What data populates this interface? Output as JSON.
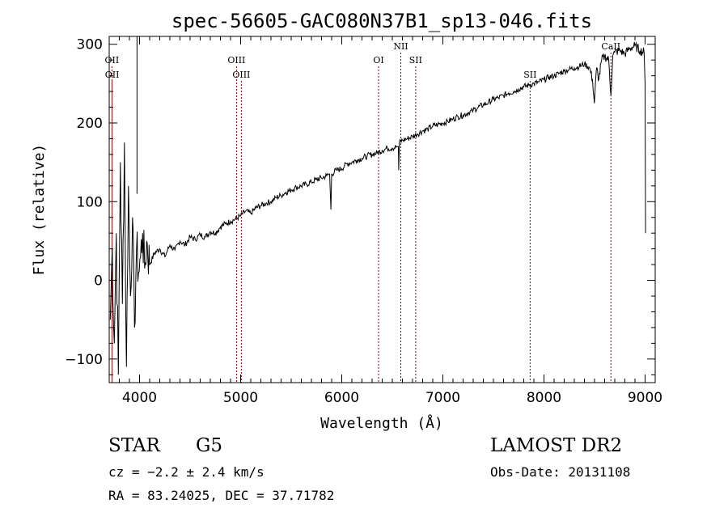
{
  "chart_data": {
    "type": "line",
    "title": "spec-56605-GAC080N37B1_sp13-046.fits",
    "xlabel": "Wavelength (Å)",
    "ylabel": "Flux (relative)",
    "xlim": [
      3700,
      9100
    ],
    "ylim": [
      -130,
      310
    ],
    "xticks": [
      {
        "value": 4000,
        "label": "4000"
      },
      {
        "value": 5000,
        "label": "5000"
      },
      {
        "value": 6000,
        "label": "6000"
      },
      {
        "value": 7000,
        "label": "7000"
      },
      {
        "value": 8000,
        "label": "8000"
      },
      {
        "value": 9000,
        "label": "9000"
      }
    ],
    "yticks": [
      {
        "value": -100,
        "label": "−100"
      },
      {
        "value": 0,
        "label": "0"
      },
      {
        "value": 100,
        "label": "100"
      },
      {
        "value": 200,
        "label": "200"
      },
      {
        "value": 300,
        "label": "300"
      }
    ],
    "grid": false,
    "line_color": "#000000",
    "marker_color": "#8b0000",
    "emission_lines": [
      {
        "label": "OII",
        "x": 3727,
        "row": "top"
      },
      {
        "label": "OII",
        "x": 3729,
        "row": "bottom"
      },
      {
        "label": "OIII",
        "x": 4959,
        "row": "top"
      },
      {
        "label": "OIII",
        "x": 5007,
        "row": "bottom"
      },
      {
        "label": "OI",
        "x": 6364,
        "row": "top"
      },
      {
        "label": "NII",
        "x": 6584,
        "row": "topmost"
      },
      {
        "label": "SII",
        "x": 6731,
        "row": "top"
      },
      {
        "label": "SII",
        "x": 7863,
        "row": "bottom"
      },
      {
        "label": "CaII",
        "x": 8662,
        "row": "topmost"
      }
    ],
    "series": [
      {
        "x": [
          3710,
          3730,
          3750,
          3770,
          3790,
          3810,
          3830,
          3850,
          3870,
          3890,
          3910,
          3930,
          3950,
          3970,
          3990,
          4010,
          4030,
          4050,
          4070,
          4100,
          4150,
          4200,
          4250,
          4300,
          4350,
          4400,
          4450,
          4500,
          4550,
          4600,
          4650,
          4700,
          4750,
          4800,
          4850,
          4900,
          4950,
          5000,
          5050,
          5100,
          5150,
          5200,
          5250,
          5300,
          5350,
          5400,
          5450,
          5500,
          5550,
          5600,
          5650,
          5700,
          5750,
          5800,
          5850,
          5880,
          5893,
          5900,
          5950,
          6000,
          6050,
          6100,
          6150,
          6200,
          6250,
          6300,
          6350,
          6400,
          6450,
          6500,
          6550,
          6560,
          6563,
          6570,
          6600,
          6650,
          6700,
          6750,
          6800,
          6850,
          6900,
          6950,
          7000,
          7050,
          7100,
          7150,
          7200,
          7250,
          7300,
          7350,
          7400,
          7450,
          7500,
          7550,
          7600,
          7650,
          7700,
          7750,
          7800,
          7850,
          7900,
          7950,
          8000,
          8050,
          8100,
          8150,
          8200,
          8250,
          8300,
          8350,
          8400,
          8450,
          8480,
          8498,
          8520,
          8542,
          8570,
          8600,
          8640,
          8662,
          8680,
          8700,
          8750,
          8800,
          8850,
          8900,
          8950,
          8990,
          9000,
          9005
        ],
        "y": [
          -50,
          40,
          -80,
          60,
          -120,
          150,
          -30,
          175,
          -110,
          120,
          -20,
          80,
          -60,
          40,
          10,
          30,
          60,
          15,
          50,
          20,
          35,
          40,
          30,
          45,
          38,
          50,
          45,
          55,
          52,
          58,
          55,
          62,
          60,
          68,
          72,
          75,
          78,
          82,
          88,
          85,
          92,
          95,
          98,
          100,
          105,
          108,
          112,
          115,
          118,
          120,
          122,
          125,
          128,
          130,
          133,
          135,
          90,
          135,
          140,
          142,
          148,
          150,
          153,
          155,
          158,
          160,
          162,
          165,
          168,
          168,
          170,
          170,
          140,
          175,
          178,
          180,
          183,
          186,
          190,
          192,
          196,
          198,
          200,
          202,
          205,
          208,
          210,
          213,
          216,
          220,
          223,
          226,
          230,
          232,
          235,
          238,
          240,
          243,
          246,
          248,
          250,
          252,
          255,
          258,
          260,
          263,
          266,
          268,
          270,
          272,
          275,
          270,
          255,
          225,
          270,
          255,
          280,
          285,
          280,
          235,
          285,
          290,
          292,
          288,
          295,
          298,
          292,
          290,
          250,
          60
        ]
      }
    ]
  },
  "info": {
    "object_class": "STAR",
    "subclass": "G5",
    "survey": "LAMOST DR2",
    "redshift": "cz = −2.2 ± 2.4 km/s",
    "obs_date": "Obs-Date: 20131108",
    "coords": "RA =  83.24025, DEC =  37.71782"
  }
}
